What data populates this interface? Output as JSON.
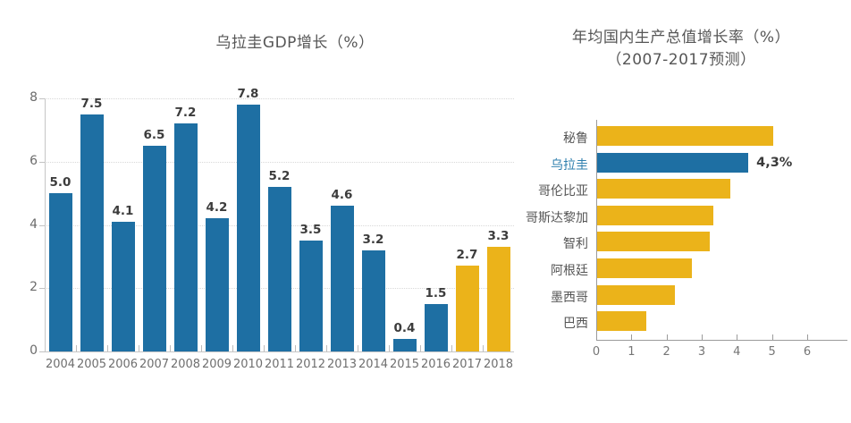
{
  "page": {
    "background": "#ffffff"
  },
  "chart_data": [
    {
      "type": "bar",
      "orientation": "vertical",
      "title": "乌拉圭GDP增长（%）",
      "categories": [
        "2004",
        "2005",
        "2006",
        "2007",
        "2008",
        "2009",
        "2010",
        "2011",
        "2012",
        "2013",
        "2014",
        "2015",
        "2016",
        "2017",
        "2018"
      ],
      "values": [
        5.0,
        7.5,
        4.1,
        6.5,
        7.2,
        4.2,
        7.8,
        5.2,
        3.5,
        4.6,
        3.2,
        0.4,
        1.5,
        2.7,
        3.3
      ],
      "value_labels": [
        "5.0",
        "7.5",
        "4.1",
        "6.5",
        "7.2",
        "4.2",
        "7.8",
        "5.2",
        "3.5",
        "4.6",
        "3.2",
        "0.4",
        "1.5",
        "2.7",
        "3.3"
      ],
      "ylim": [
        0,
        8
      ],
      "yticks": [
        0,
        2,
        4,
        6,
        8
      ],
      "grid": "horizontal-dotted",
      "bar_color": "#1e6fa3",
      "forecast_color": "#ebb31a",
      "forecast_indices": [
        13,
        14
      ],
      "legend": null
    },
    {
      "type": "bar",
      "orientation": "horizontal",
      "title": "年均国内生产总值增长率（%）",
      "subtitle": "（2007-2017预测）",
      "categories": [
        "秘鲁",
        "乌拉圭",
        "哥伦比亚",
        "哥斯达黎加",
        "智利",
        "阿根廷",
        "墨西哥",
        "巴西"
      ],
      "values": [
        5.0,
        4.3,
        3.8,
        3.3,
        3.2,
        2.7,
        2.2,
        1.4
      ],
      "highlight_index": 1,
      "highlight_value_label": "4,3%",
      "xlim": [
        0,
        6
      ],
      "xticks": [
        0,
        1,
        2,
        3,
        4,
        5,
        6
      ],
      "grid": "off",
      "bar_color": "#ebb31a",
      "highlight_bar_color": "#1e6fa3",
      "highlight_label_color": "#2e7fae",
      "legend": null
    }
  ]
}
